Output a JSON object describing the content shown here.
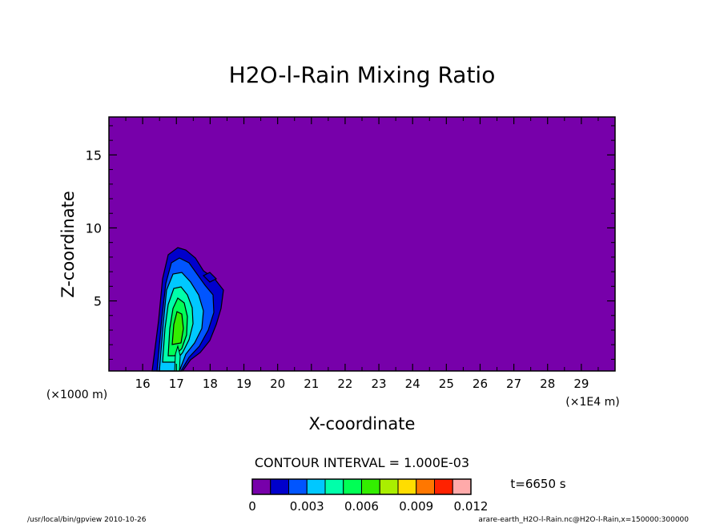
{
  "chart_data": {
    "type": "contour",
    "title": "H2O-l-Rain Mixing Ratio",
    "xlabel": "X-coordinate",
    "ylabel": "Z-coordinate",
    "x_unit_label": "(×1E4 m)",
    "y_unit_label": "(×1000 m)",
    "xlim": [
      15.0,
      30.0
    ],
    "ylim": [
      0.2,
      17.6
    ],
    "x_ticks": [
      16,
      17,
      18,
      19,
      20,
      21,
      22,
      23,
      24,
      25,
      26,
      27,
      28,
      29
    ],
    "y_ticks": [
      5,
      10,
      15
    ],
    "contour_interval_label": "CONTOUR INTERVAL = 1.000E-03",
    "time_label": "t=6650 s",
    "colorbar": {
      "levels": [
        0,
        0.001,
        0.002,
        0.003,
        0.004,
        0.005,
        0.006,
        0.007,
        0.008,
        0.009,
        0.01,
        0.011,
        0.012
      ],
      "tick_labels": [
        "0",
        "0.003",
        "0.006",
        "0.009",
        "0.012"
      ],
      "colors": [
        "#7700aa",
        "#0000cc",
        "#0055ff",
        "#00c8ff",
        "#00ffaa",
        "#00ff55",
        "#33ee00",
        "#aaee00",
        "#ffdd00",
        "#ff7700",
        "#ff2200",
        "#ffaaaa"
      ]
    },
    "rain_shaft": {
      "center_x": 17.1,
      "core_z_range": [
        1.5,
        5.5
      ],
      "top_z": 8.6,
      "max_value": 0.006
    }
  },
  "footer": {
    "left": "/usr/local/bin/gpview  2010-10-26",
    "right": "arare-earth_H2O-l-Rain.nc@H2O-l-Rain,x=150000:300000"
  }
}
